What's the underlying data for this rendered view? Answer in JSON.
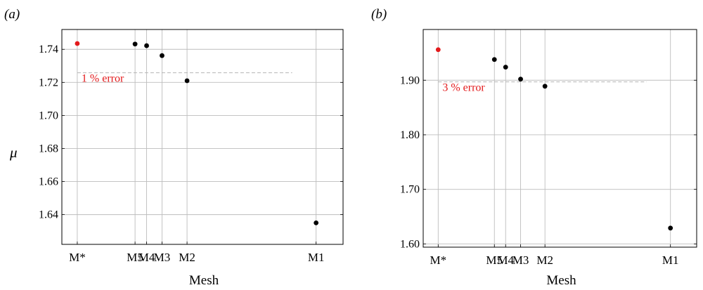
{
  "figure": {
    "background": "#ffffff"
  },
  "chart_data": [
    {
      "type": "scatter",
      "panel_label": "(a)",
      "xlabel": "Mesh",
      "ylabel": "μ",
      "categories": [
        "M*",
        "M5",
        "M4",
        "M3",
        "M2",
        "M1"
      ],
      "category_x": [
        0.1,
        1.6,
        1.9,
        2.3,
        2.95,
        6.3
      ],
      "xlim": [
        -0.3,
        7
      ],
      "values": [
        1.7435,
        1.7432,
        1.7422,
        1.7362,
        1.721,
        1.635
      ],
      "point_colors": [
        "#e31a1c",
        "#000000",
        "#000000",
        "#000000",
        "#000000",
        "#000000"
      ],
      "ylim": [
        1.622,
        1.752
      ],
      "yticks": [
        1.64,
        1.66,
        1.68,
        1.7,
        1.72,
        1.74
      ],
      "ytick_labels": [
        "1.64",
        "1.66",
        "1.68",
        "1.70",
        "1.72",
        "1.74"
      ],
      "reference_line": {
        "y": 1.7258,
        "label": "1 % error",
        "color": "#e31a1c"
      },
      "grid": true
    },
    {
      "type": "scatter",
      "panel_label": "(b)",
      "xlabel": "Mesh",
      "ylabel": "",
      "categories": [
        "M*",
        "M5",
        "M4",
        "M3",
        "M2",
        "M1"
      ],
      "category_x": [
        0.1,
        1.6,
        1.9,
        2.3,
        2.95,
        6.3
      ],
      "xlim": [
        -0.3,
        7
      ],
      "values": [
        1.956,
        1.938,
        1.924,
        1.902,
        1.889,
        1.629
      ],
      "point_colors": [
        "#e31a1c",
        "#000000",
        "#000000",
        "#000000",
        "#000000",
        "#000000"
      ],
      "ylim": [
        1.594,
        1.993
      ],
      "yticks": [
        1.6,
        1.7,
        1.8,
        1.9
      ],
      "ytick_labels": [
        "1.60",
        "1.70",
        "1.80",
        "1.90"
      ],
      "reference_line": {
        "y": 1.897,
        "label": "3 % error",
        "color": "#e31a1c"
      },
      "grid": true
    }
  ]
}
